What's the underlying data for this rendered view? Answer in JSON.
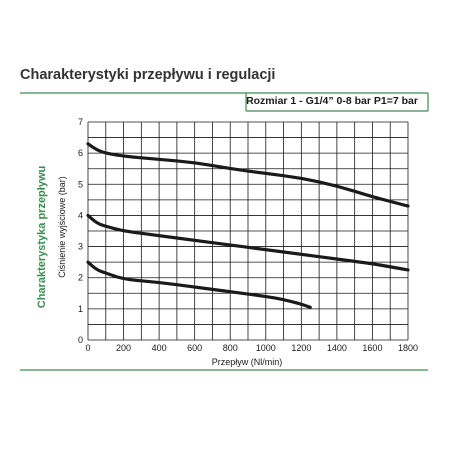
{
  "header": {
    "title": "Charakterystyki przepływu i regulacji"
  },
  "side": {
    "label": "Charakterystyka przepływu"
  },
  "colors": {
    "frame_green": "#3b8d4e",
    "grid": "#1a1a1a",
    "curve": "#1a1a1a"
  },
  "chart_data": {
    "type": "line",
    "title": "Rozmiar 1 - G1/4” 0-8 bar P1=7 bar",
    "xlabel": "Przepływ (Nl/min)",
    "ylabel": "Ciśnienie wyjściowe (bar)",
    "xlim": [
      0,
      1800
    ],
    "ylim": [
      0,
      7
    ],
    "xticks": [
      0,
      200,
      400,
      600,
      800,
      1000,
      1200,
      1400,
      1600,
      1800
    ],
    "yticks": [
      0,
      1,
      2,
      3,
      4,
      5,
      6,
      7
    ],
    "grid": true,
    "series": [
      {
        "x": [
          0,
          50,
          100,
          200,
          400,
          600,
          800,
          1000,
          1200,
          1400,
          1600,
          1700,
          1800
        ],
        "y": [
          6.3,
          6.1,
          6.0,
          5.9,
          5.8,
          5.7,
          5.5,
          5.35,
          5.2,
          4.95,
          4.6,
          4.45,
          4.3
        ]
      },
      {
        "x": [
          0,
          50,
          100,
          200,
          400,
          600,
          800,
          1000,
          1200,
          1400,
          1600,
          1700,
          1800
        ],
        "y": [
          4.0,
          3.75,
          3.65,
          3.5,
          3.35,
          3.2,
          3.05,
          2.9,
          2.75,
          2.6,
          2.45,
          2.35,
          2.25
        ]
      },
      {
        "x": [
          0,
          50,
          100,
          200,
          400,
          600,
          800,
          1000,
          1100,
          1200,
          1250
        ],
        "y": [
          2.5,
          2.25,
          2.15,
          1.95,
          1.85,
          1.7,
          1.55,
          1.4,
          1.3,
          1.15,
          1.05
        ]
      }
    ]
  }
}
